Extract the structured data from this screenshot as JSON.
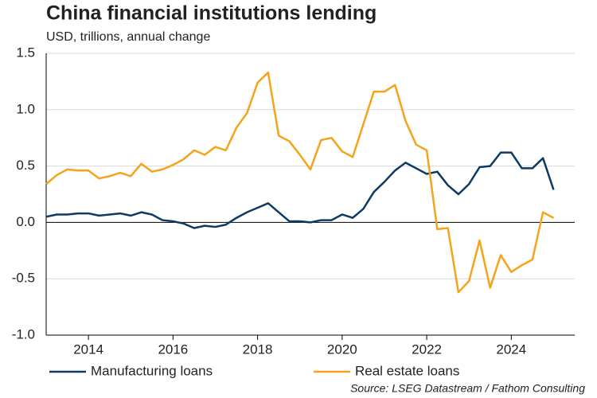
{
  "chart_data": {
    "type": "line",
    "title": "China financial institutions lending",
    "subtitle": "USD, trillions,  annual change",
    "source": "Source: LSEG Datastream / Fathom Consulting",
    "x": [
      2013,
      2013.25,
      2013.5,
      2013.75,
      2014,
      2014.25,
      2014.5,
      2014.75,
      2015,
      2015.25,
      2015.5,
      2015.75,
      2016,
      2016.25,
      2016.5,
      2016.75,
      2017,
      2017.25,
      2017.5,
      2017.75,
      2018,
      2018.25,
      2018.5,
      2018.75,
      2019,
      2019.25,
      2019.5,
      2019.75,
      2020,
      2020.25,
      2020.5,
      2020.75,
      2021,
      2021.25,
      2021.5,
      2021.75,
      2022,
      2022.25,
      2022.5,
      2022.75,
      2023,
      2023.25,
      2023.5,
      2023.75,
      2024,
      2024.25,
      2024.5,
      2024.75,
      2025
    ],
    "series": [
      {
        "name": "Manufacturing loans",
        "color": "#0d3a63",
        "values": [
          0.05,
          0.07,
          0.07,
          0.08,
          0.08,
          0.06,
          0.07,
          0.08,
          0.06,
          0.09,
          0.07,
          0.02,
          0.01,
          -0.01,
          -0.05,
          -0.03,
          -0.04,
          -0.02,
          0.04,
          0.09,
          0.13,
          0.17,
          0.09,
          0.01,
          0.01,
          0.0,
          0.02,
          0.02,
          0.07,
          0.04,
          0.12,
          0.27,
          0.36,
          0.46,
          0.53,
          0.48,
          0.43,
          0.45,
          0.33,
          0.25,
          0.34,
          0.49,
          0.5,
          0.62,
          0.62,
          0.48,
          0.48,
          0.57,
          0.29
        ]
      },
      {
        "name": "Real estate loans",
        "color": "#f5a31a",
        "values": [
          0.34,
          0.42,
          0.47,
          0.46,
          0.46,
          0.39,
          0.41,
          0.44,
          0.41,
          0.52,
          0.45,
          0.47,
          0.51,
          0.56,
          0.64,
          0.6,
          0.67,
          0.64,
          0.84,
          0.97,
          1.24,
          1.33,
          0.77,
          0.72,
          0.6,
          0.47,
          0.73,
          0.75,
          0.63,
          0.58,
          0.87,
          1.16,
          1.16,
          1.22,
          0.9,
          0.69,
          0.64,
          -0.06,
          -0.05,
          -0.62,
          -0.52,
          -0.16,
          -0.58,
          -0.29,
          -0.44,
          -0.38,
          -0.33,
          0.09,
          0.04
        ]
      }
    ],
    "xlim": [
      2013,
      2025.5
    ],
    "ylim": [
      -1.0,
      1.5
    ],
    "xticks": [
      2014,
      2016,
      2018,
      2020,
      2022,
      2024
    ],
    "yticks": [
      1.5,
      {
        "value": 1.0,
        "label": "1.0"
      },
      0.5,
      {
        "value": 0.0,
        "label": "0.0"
      },
      -0.5,
      {
        "value": -1.0,
        "label": "-1.0"
      }
    ],
    "grid": true
  }
}
